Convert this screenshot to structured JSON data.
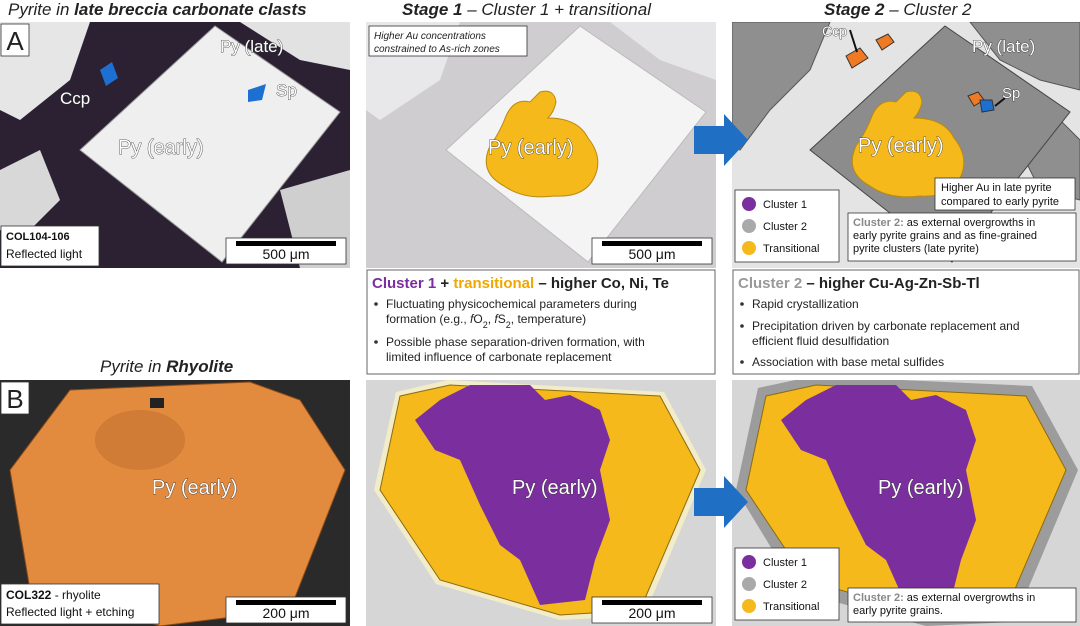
{
  "headers": [
    {
      "parts": [
        "Pyrite in ",
        "late breccia carbonate clasts"
      ]
    },
    {
      "parts": [
        "Stage 1",
        " – Cluster 1 + transitional"
      ]
    },
    {
      "parts": [
        "Stage 2",
        " – Cluster 2"
      ]
    }
  ],
  "row_b_title": {
    "parts": [
      "Pyrite in ",
      "Rhyolite"
    ]
  },
  "panels": {
    "a1": {
      "letter": "A",
      "labels": [
        "Py (late)",
        "Ccp",
        "Sp",
        "Py (early)"
      ],
      "sample": "COL104-106",
      "method": "Reflected light",
      "scale": "500 μm"
    },
    "a2": {
      "note": [
        "Higher Au concentrations",
        "constrained to As-rich zones"
      ],
      "label": "Py (early)",
      "scale": "500 μm"
    },
    "a3": {
      "labels": [
        "Ccp",
        "Py (late)",
        "Sp",
        "Py (early)"
      ],
      "note": [
        "Higher Au in late pyrite",
        "compared to early pyrite"
      ],
      "legend": [
        "Cluster 1",
        "Cluster 2",
        "Transitional"
      ],
      "caption_head": "Cluster 2:",
      "caption": [
        " as external overgrowths in",
        "early pyrite grains and as fine-grained",
        "pyrite clusters (late pyrite)"
      ]
    },
    "b1": {
      "letter": "B",
      "label": "Py (early)",
      "sample": "COL322",
      "sample_rest": " - rhyolite",
      "method": "Reflected light + etching",
      "scale": "200 μm"
    },
    "b2": {
      "label": "Py (early)",
      "scale": "200 μm"
    },
    "b3": {
      "label": "Py (early)",
      "legend": [
        "Cluster 1",
        "Cluster 2",
        "Transitional"
      ],
      "caption_head": "Cluster 2:",
      "caption": [
        " as external overgrowths in",
        "early pyrite grains."
      ]
    }
  },
  "boxes": [
    {
      "title_parts": [
        "Cluster 1",
        " + ",
        "transitional",
        " – higher Co, Ni, Te"
      ],
      "bullets": [
        [
          [
            "Fluctuating physicochemical parameters during"
          ],
          [
            "formation (e.g., ",
            "f",
            "O",
            "2",
            ", ",
            "f",
            "S",
            "2",
            ", temperature)"
          ]
        ],
        [
          [
            "Possible phase separation-driven formation, with"
          ],
          [
            "limited influence of carbonate replacement"
          ]
        ]
      ]
    },
    {
      "title_parts": [
        "Cluster 2",
        " – higher Cu-Ag-Zn-Sb-Tl"
      ],
      "bullets": [
        [
          [
            "Rapid crystallization"
          ]
        ],
        [
          [
            "Precipitation driven by carbonate replacement and"
          ],
          [
            "efficient fluid desulfidation"
          ]
        ],
        [
          [
            "Association with base metal sulfides"
          ]
        ]
      ]
    }
  ]
}
